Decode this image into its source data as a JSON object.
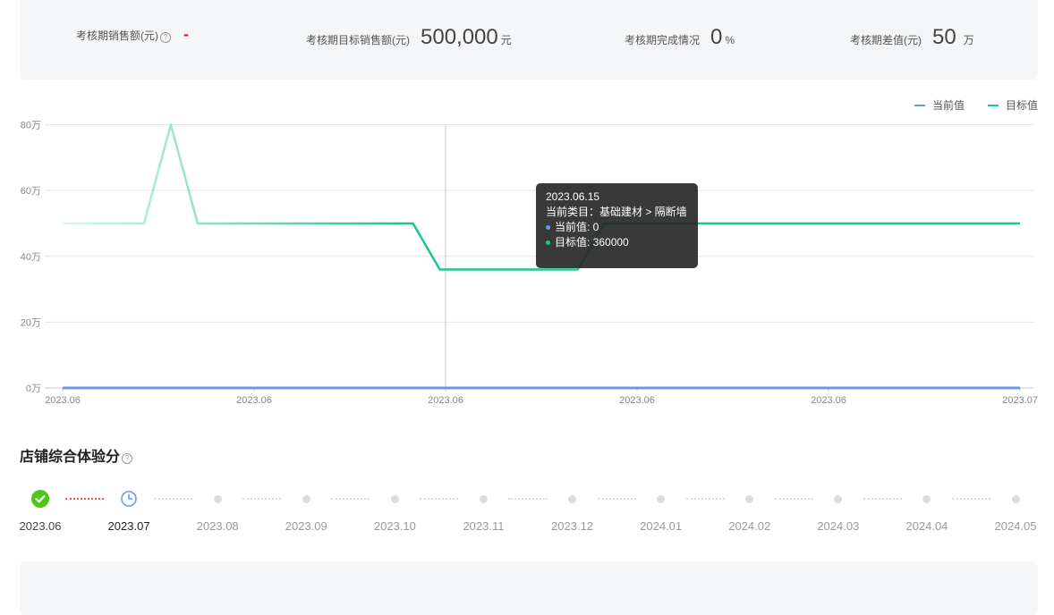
{
  "stats": [
    {
      "label": "考核期销售额(元)",
      "value": "-",
      "unit": "",
      "help": "?"
    },
    {
      "label": "考核期目标销售额(元)",
      "value": "500,000",
      "unit": "元"
    },
    {
      "label": "考核期完成情况",
      "value": "0",
      "unit": "%"
    },
    {
      "label": "考核期差值(元)",
      "value": "50",
      "unit": "万"
    }
  ],
  "chart_data": {
    "type": "line",
    "x": [
      "2023.06",
      "2023.06",
      "2023.06",
      "2023.06",
      "2023.06",
      "2023.07"
    ],
    "xlabel": "",
    "ylabel": "",
    "y_tick_labels": [
      "0万",
      "20万",
      "40万",
      "60万",
      "80万"
    ],
    "ylim": [
      0,
      800000
    ],
    "grid": true,
    "legend_position": "top-right",
    "series": [
      {
        "name": "当前值",
        "color": "#6f97e8",
        "x": [
          0,
          1
        ],
        "values": [
          0,
          0
        ]
      },
      {
        "name": "目标值",
        "color": "#1cc78c",
        "x": [
          0,
          0.085,
          0.113,
          0.141,
          0.366,
          0.394,
          0.538,
          0.566,
          1
        ],
        "values": [
          500000,
          500000,
          800000,
          500000,
          500000,
          360000,
          360000,
          500000,
          500000
        ]
      }
    ]
  },
  "legend": [
    {
      "name": "当前值",
      "color": "#6f97e8"
    },
    {
      "name": "目标值",
      "color": "#1cc78c"
    }
  ],
  "tooltip": {
    "date": "2023.06.15",
    "category": "当前类目：基础建材 > 隔断墙",
    "current": "当前值: 0",
    "target": "目标值: 360000",
    "current_color": "#6f97e8",
    "target_color": "#1cc78c"
  },
  "section": {
    "title": "店铺综合体验分",
    "help": "?"
  },
  "timeline": [
    {
      "label": "2023.06",
      "status": "done"
    },
    {
      "label": "2023.07",
      "status": "current"
    },
    {
      "label": "2023.08",
      "status": "future"
    },
    {
      "label": "2023.09",
      "status": "future"
    },
    {
      "label": "2023.10",
      "status": "future"
    },
    {
      "label": "2023.11",
      "status": "future"
    },
    {
      "label": "2023.12",
      "status": "future"
    },
    {
      "label": "2024.01",
      "status": "future"
    },
    {
      "label": "2024.02",
      "status": "future"
    },
    {
      "label": "2024.03",
      "status": "future"
    },
    {
      "label": "2024.04",
      "status": "future"
    },
    {
      "label": "2024.05",
      "status": "future"
    }
  ],
  "icons": {
    "done": "check-circle-icon",
    "current": "clock-icon",
    "future": "dot-icon"
  }
}
